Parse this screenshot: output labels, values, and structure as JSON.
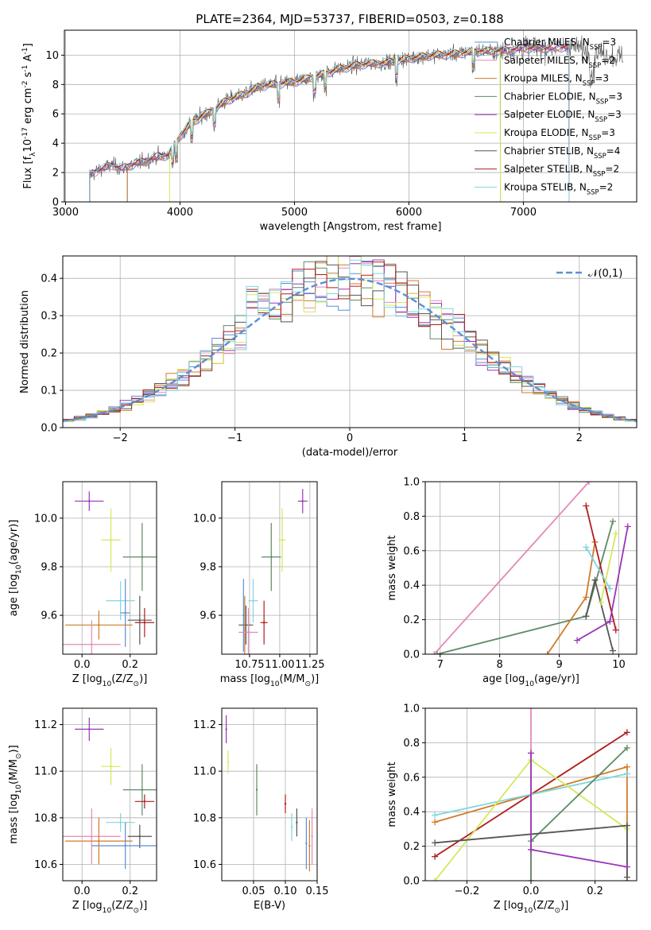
{
  "figure": {
    "title": "PLATE=2364, MJD=53737, FIBERID=0503, z=0.188"
  },
  "colors": {
    "chabrier_miles": "#5b8fd6",
    "salpeter_miles": "#e38ab8",
    "kroupa_miles": "#d07b2a",
    "chabrier_elodie": "#5e8a62",
    "salpeter_elodie": "#9a35b5",
    "kroupa_elodie": "#d4e85a",
    "chabrier_stelib": "#555555",
    "salpeter_stelib": "#b01c1c",
    "kroupa_stelib": "#7fd6e0",
    "normal_curve": "#5b8fd6"
  },
  "chart_data": [
    {
      "id": "spectrum",
      "type": "line",
      "xlabel": "wavelength [Angstrom, rest frame]",
      "ylabel": "Flux [f$_\\lambda$10$^{-17}$ erg cm$^{-2}$ s$^{-1}$ A$^{-1}$]",
      "xlim": [
        2990,
        7990
      ],
      "ylim": [
        0,
        11.7
      ],
      "xticks": [
        3000,
        4000,
        5000,
        6000,
        7000
      ],
      "yticks": [
        0,
        2,
        4,
        6,
        8,
        10
      ],
      "legend_position": "top-right",
      "series": [
        {
          "name": "Chabrier MILES, N$_{SSP}$=3",
          "color_key": "chabrier_miles",
          "x": [
            3540,
            3600,
            3700,
            3800,
            3900,
            4000,
            4100,
            4200,
            4300,
            4400,
            4500,
            4600,
            4700,
            4800,
            4900,
            5000,
            5200,
            5400,
            5600,
            5800,
            6000,
            6200,
            6400,
            6600,
            6800,
            7000,
            7200,
            7400
          ],
          "y": [
            2.2,
            2.4,
            2.7,
            3.0,
            3.3,
            4.6,
            5.4,
            5.9,
            6.3,
            6.9,
            7.3,
            7.6,
            8.0,
            8.1,
            8.2,
            8.3,
            8.7,
            9.2,
            9.5,
            9.6,
            9.8,
            10.0,
            10.2,
            10.4,
            10.4,
            10.6,
            10.6,
            10.7
          ]
        },
        {
          "name": "Salpeter MILES, N$_{SSP}$=2",
          "color_key": "salpeter_miles"
        },
        {
          "name": "Kroupa MILES, N$_{SSP}$=3",
          "color_key": "kroupa_miles"
        },
        {
          "name": "Chabrier ELODIE, N$_{SSP}$=3",
          "color_key": "chabrier_elodie"
        },
        {
          "name": "Salpeter ELODIE, N$_{SSP}$=3",
          "color_key": "salpeter_elodie"
        },
        {
          "name": "Kroupa ELODIE, N$_{SSP}$=3",
          "color_key": "kroupa_elodie"
        },
        {
          "name": "Chabrier STELIB, N$_{SSP}$=4",
          "color_key": "chabrier_stelib",
          "x": [
            3200,
            3300,
            3400,
            3500,
            3600,
            3700,
            3800,
            3900,
            4000,
            4100,
            4200,
            4300,
            4400,
            4500,
            4600,
            4700,
            4800,
            4900,
            5000,
            5200,
            5400,
            5600,
            5800,
            6000,
            6200,
            6400,
            6600,
            6800,
            7000,
            7200,
            7400,
            7600,
            7800
          ],
          "y": [
            1.8,
            2.2,
            2.5,
            2.3,
            2.6,
            2.8,
            3.1,
            3.2,
            4.5,
            5.4,
            5.9,
            6.3,
            6.9,
            7.2,
            7.5,
            7.9,
            8.0,
            8.1,
            8.2,
            8.6,
            9.1,
            9.4,
            9.5,
            9.8,
            10.0,
            10.1,
            10.3,
            10.3,
            10.5,
            10.5,
            10.6,
            10.3,
            9.9
          ]
        },
        {
          "name": "Salpeter STELIB, N$_{SSP}$=2",
          "color_key": "salpeter_stelib"
        },
        {
          "name": "Kroupa STELIB, N$_{SSP}$=2",
          "color_key": "kroupa_stelib"
        }
      ]
    },
    {
      "id": "residuals",
      "type": "line",
      "xlabel": "(data-model)/error",
      "ylabel": "Normed distribution",
      "xlim": [
        -2.5,
        2.5
      ],
      "ylim": [
        0,
        0.46
      ],
      "xticks": [
        -2,
        -1,
        0,
        1,
        2
      ],
      "xticklabels": [
        "−2",
        "−1",
        "0",
        "1",
        "2"
      ],
      "yticks": [
        0.0,
        0.1,
        0.2,
        0.3,
        0.4
      ],
      "yticklabels": [
        "0.0",
        "0.1",
        "0.2",
        "0.3",
        "0.4"
      ],
      "legend_position": "top-right",
      "curve_label": "$\\mathcal{N}(0,1)$",
      "hist_bin_width": 0.1
    },
    {
      "id": "z_vs_age",
      "type": "scatter",
      "xlabel": "Z [log$_{10}$($Z/Z_\\odot$)]",
      "ylabel": "age  [log$_{10}$($age/yr$)]",
      "xlim": [
        -0.08,
        0.31
      ],
      "ylim": [
        9.44,
        10.15
      ],
      "xticks": [
        0.0,
        0.2
      ],
      "xticklabels": [
        "0.0",
        "0.2"
      ],
      "yticks": [
        9.6,
        9.8,
        10.0
      ],
      "yticklabels": [
        "9.6",
        "9.8",
        "10.0"
      ],
      "points": [
        {
          "color_key": "salpeter_elodie",
          "x": 0.03,
          "y": 10.07,
          "xerr": 0.06,
          "yerr": 0.04
        },
        {
          "color_key": "kroupa_elodie",
          "x": 0.12,
          "y": 9.91,
          "xerr": 0.04,
          "yerr": 0.13
        },
        {
          "color_key": "chabrier_elodie",
          "x": 0.25,
          "y": 9.84,
          "xerr": 0.08,
          "yerr": 0.14
        },
        {
          "color_key": "kroupa_stelib",
          "x": 0.16,
          "y": 9.66,
          "xerr": 0.06,
          "yerr": 0.08
        },
        {
          "color_key": "chabrier_miles",
          "x": 0.18,
          "y": 9.61,
          "xerr": 0.02,
          "yerr": 0.14
        },
        {
          "color_key": "chabrier_stelib",
          "x": 0.24,
          "y": 9.58,
          "xerr": 0.05,
          "yerr": 0.1
        },
        {
          "color_key": "salpeter_stelib",
          "x": 0.26,
          "y": 9.57,
          "xerr": 0.04,
          "yerr": 0.06
        },
        {
          "color_key": "kroupa_miles",
          "x": 0.07,
          "y": 9.56,
          "xerr": 0.14,
          "yerr": 0.06
        },
        {
          "color_key": "salpeter_miles",
          "x": 0.04,
          "y": 9.48,
          "xerr": 0.12,
          "yerr": 0.1
        }
      ]
    },
    {
      "id": "mass_vs_age",
      "type": "scatter",
      "xlabel": "mass [log$_{10}$($M/M_\\odot$)]",
      "xlim": [
        10.52,
        11.31
      ],
      "ylim": [
        9.44,
        10.15
      ],
      "xticks": [
        10.75,
        11.0,
        11.25
      ],
      "xticklabels": [
        "10.75",
        "11.00",
        "11.25"
      ],
      "yticks": [
        9.6,
        9.8,
        10.0
      ],
      "yticklabels": [
        "9.6",
        "9.8",
        "10.0"
      ],
      "points": [
        {
          "color_key": "salpeter_elodie",
          "x": 11.19,
          "y": 10.07,
          "xerr": 0.04,
          "yerr": 0.05
        },
        {
          "color_key": "kroupa_elodie",
          "x": 11.02,
          "y": 9.91,
          "xerr": 0.03,
          "yerr": 0.13
        },
        {
          "color_key": "chabrier_elodie",
          "x": 10.93,
          "y": 9.84,
          "xerr": 0.08,
          "yerr": 0.14
        },
        {
          "color_key": "kroupa_stelib",
          "x": 10.78,
          "y": 9.66,
          "xerr": 0.04,
          "yerr": 0.09
        },
        {
          "color_key": "chabrier_miles",
          "x": 10.7,
          "y": 9.6,
          "xerr": 0.0,
          "yerr": 0.15
        },
        {
          "color_key": "chabrier_stelib",
          "x": 10.72,
          "y": 9.56,
          "xerr": 0.06,
          "yerr": 0.08
        },
        {
          "color_key": "salpeter_stelib",
          "x": 10.87,
          "y": 9.57,
          "xerr": 0.03,
          "yerr": 0.09
        },
        {
          "color_key": "kroupa_miles",
          "x": 10.71,
          "y": 9.56,
          "xerr": 0.0,
          "yerr": 0.12
        },
        {
          "color_key": "salpeter_miles",
          "x": 10.74,
          "y": 9.53,
          "xerr": 0.08,
          "yerr": 0.1
        }
      ]
    },
    {
      "id": "age_vs_weight",
      "type": "line",
      "xlabel": "age  [log$_{10}$($age/yr$)]",
      "ylabel": "mass weight",
      "xlim": [
        6.75,
        10.3
      ],
      "ylim": [
        0,
        1
      ],
      "xticks": [
        7,
        8,
        9,
        10
      ],
      "yticks": [
        0.0,
        0.2,
        0.4,
        0.6,
        0.8,
        1.0
      ],
      "yticklabels": [
        "0.0",
        "0.2",
        "0.4",
        "0.6",
        "0.8",
        "1.0"
      ],
      "series": [
        {
          "color_key": "salpeter_miles",
          "x": [
            6.9,
            9.5
          ],
          "y": [
            0.0,
            1.0
          ]
        },
        {
          "color_key": "chabrier_elodie",
          "x": [
            6.95,
            9.45,
            9.9
          ],
          "y": [
            0.0,
            0.22,
            0.77
          ]
        },
        {
          "color_key": "kroupa_miles",
          "x": [
            8.8,
            9.45,
            9.6
          ],
          "y": [
            0.0,
            0.33,
            0.65
          ]
        },
        {
          "color_key": "salpeter_stelib",
          "x": [
            9.45,
            9.95
          ],
          "y": [
            0.86,
            0.14
          ]
        },
        {
          "color_key": "chabrier_stelib",
          "x": [
            9.45,
            9.6,
            9.9
          ],
          "y": [
            0.22,
            0.43,
            0.02
          ]
        },
        {
          "color_key": "kroupa_stelib",
          "x": [
            9.45,
            9.85
          ],
          "y": [
            0.62,
            0.38
          ]
        },
        {
          "color_key": "salpeter_elodie",
          "x": [
            9.3,
            9.85,
            10.15
          ],
          "y": [
            0.08,
            0.19,
            0.74
          ]
        },
        {
          "color_key": "kroupa_elodie",
          "x": [
            9.7,
            9.95
          ],
          "y": [
            0.3,
            0.7
          ]
        }
      ]
    },
    {
      "id": "z_vs_mass",
      "type": "scatter",
      "xlabel": "Z [log$_{10}$($Z/Z_\\odot$)]",
      "ylabel": "mass [log$_{10}$($M/M_\\odot$)]",
      "xlim": [
        -0.08,
        0.31
      ],
      "ylim": [
        10.53,
        11.27
      ],
      "xticks": [
        0.0,
        0.2
      ],
      "xticklabels": [
        "0.0",
        "0.2"
      ],
      "yticks": [
        10.6,
        10.8,
        11.0,
        11.2
      ],
      "yticklabels": [
        "10.6",
        "10.8",
        "11.0",
        "11.2"
      ],
      "points": [
        {
          "color_key": "salpeter_elodie",
          "x": 0.03,
          "y": 11.18,
          "xerr": 0.06,
          "yerr": 0.05
        },
        {
          "color_key": "kroupa_elodie",
          "x": 0.12,
          "y": 11.02,
          "xerr": 0.04,
          "yerr": 0.08
        },
        {
          "color_key": "chabrier_elodie",
          "x": 0.25,
          "y": 10.92,
          "xerr": 0.08,
          "yerr": 0.11
        },
        {
          "color_key": "salpeter_stelib",
          "x": 0.26,
          "y": 10.87,
          "xerr": 0.04,
          "yerr": 0.03
        },
        {
          "color_key": "kroupa_stelib",
          "x": 0.16,
          "y": 10.78,
          "xerr": 0.06,
          "yerr": 0.04
        },
        {
          "color_key": "chabrier_stelib",
          "x": 0.24,
          "y": 10.72,
          "xerr": 0.05,
          "yerr": 0.05
        },
        {
          "color_key": "salpeter_miles",
          "x": 0.04,
          "y": 10.72,
          "xerr": 0.12,
          "yerr": 0.12
        },
        {
          "color_key": "kroupa_miles",
          "x": 0.07,
          "y": 10.7,
          "xerr": 0.14,
          "yerr": 0.1
        },
        {
          "color_key": "chabrier_miles",
          "x": 0.18,
          "y": 10.68,
          "xerr": 0.14,
          "yerr": 0.1
        }
      ]
    },
    {
      "id": "ebv_vs_mass",
      "type": "scatter",
      "xlabel": "E(B-V)",
      "xlim": [
        0.0,
        0.15
      ],
      "ylim": [
        10.53,
        11.27
      ],
      "xticks": [
        0.05,
        0.1,
        0.15
      ],
      "xticklabels": [
        "0.05",
        "0.10",
        "0.15"
      ],
      "yticks": [
        10.6,
        10.8,
        11.0,
        11.2
      ],
      "yticklabels": [
        "10.6",
        "10.8",
        "11.0",
        "11.2"
      ],
      "points": [
        {
          "color_key": "salpeter_elodie",
          "x": 0.007,
          "y": 11.18,
          "xerr": 0,
          "yerr": 0.06
        },
        {
          "color_key": "kroupa_elodie",
          "x": 0.01,
          "y": 11.04,
          "xerr": 0,
          "yerr": 0.05
        },
        {
          "color_key": "chabrier_elodie",
          "x": 0.055,
          "y": 10.92,
          "xerr": 0,
          "yerr": 0.11
        },
        {
          "color_key": "salpeter_stelib",
          "x": 0.1,
          "y": 10.86,
          "xerr": 0,
          "yerr": 0.04
        },
        {
          "color_key": "kroupa_stelib",
          "x": 0.11,
          "y": 10.76,
          "xerr": 0,
          "yerr": 0.06
        },
        {
          "color_key": "chabrier_stelib",
          "x": 0.118,
          "y": 10.78,
          "xerr": 0,
          "yerr": 0.06
        },
        {
          "color_key": "salpeter_miles",
          "x": 0.142,
          "y": 10.72,
          "xerr": 0,
          "yerr": 0.12
        },
        {
          "color_key": "kroupa_miles",
          "x": 0.138,
          "y": 10.68,
          "xerr": 0,
          "yerr": 0.11
        },
        {
          "color_key": "chabrier_miles",
          "x": 0.133,
          "y": 10.69,
          "xerr": 0,
          "yerr": 0.11
        }
      ]
    },
    {
      "id": "z_vs_weight",
      "type": "line",
      "xlabel": "Z [log$_{10}$($Z/Z_\\odot$)]",
      "ylabel": "mass weight",
      "xlim": [
        -0.33,
        0.33
      ],
      "ylim": [
        0,
        1
      ],
      "xticks": [
        -0.2,
        0.0,
        0.2
      ],
      "xticklabels": [
        "−0.2",
        "0.0",
        "0.2"
      ],
      "yticks": [
        0.0,
        0.2,
        0.4,
        0.6,
        0.8,
        1.0
      ],
      "yticklabels": [
        "0.0",
        "0.2",
        "0.4",
        "0.6",
        "0.8",
        "1.0"
      ],
      "series": [
        {
          "color_key": "salpeter_miles",
          "x": [
            0.0,
            0.0
          ],
          "y": [
            0.0,
            1.0
          ]
        },
        {
          "color_key": "salpeter_stelib",
          "x": [
            -0.3,
            0.3
          ],
          "y": [
            0.14,
            0.86
          ]
        },
        {
          "color_key": "kroupa_miles",
          "x": [
            -0.3,
            0.3,
            0.3
          ],
          "y": [
            0.34,
            0.66,
            0.0
          ]
        },
        {
          "color_key": "kroupa_stelib",
          "x": [
            -0.3,
            0.3
          ],
          "y": [
            0.38,
            0.62
          ]
        },
        {
          "color_key": "kroupa_elodie",
          "x": [
            -0.3,
            0.0,
            0.3
          ],
          "y": [
            0.0,
            0.7,
            0.3
          ]
        },
        {
          "color_key": "chabrier_elodie",
          "x": [
            0.0,
            0.0,
            0.3
          ],
          "y": [
            0.0,
            0.23,
            0.77
          ]
        },
        {
          "color_key": "chabrier_stelib",
          "x": [
            -0.3,
            0.3,
            0.3
          ],
          "y": [
            0.22,
            0.32,
            0.02
          ]
        },
        {
          "color_key": "salpeter_elodie",
          "x": [
            0.0,
            0.0,
            0.3
          ],
          "y": [
            0.74,
            0.18,
            0.08
          ]
        }
      ]
    }
  ]
}
